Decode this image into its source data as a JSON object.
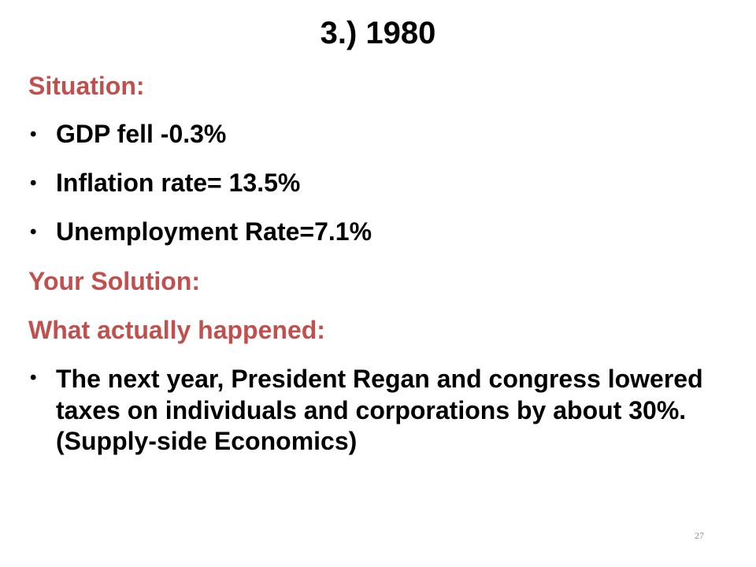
{
  "slide": {
    "title": "3.) 1980",
    "situation_heading": "Situation:",
    "situation_bullets": [
      "GDP fell -0.3%",
      "Inflation rate= 13.5%",
      "Unemployment Rate=7.1%"
    ],
    "solution_heading": "Your Solution:",
    "actual_heading": "What actually happened:",
    "actual_bullets": [
      "The next year, President Regan and congress lowered taxes on individuals and corporations by about 30%. (Supply-side Economics)"
    ],
    "bullet_glyph": "•",
    "page_number": "27"
  },
  "colors": {
    "heading": "#c0504d",
    "body_text": "#000000",
    "page_number": "#8c8c8c"
  }
}
